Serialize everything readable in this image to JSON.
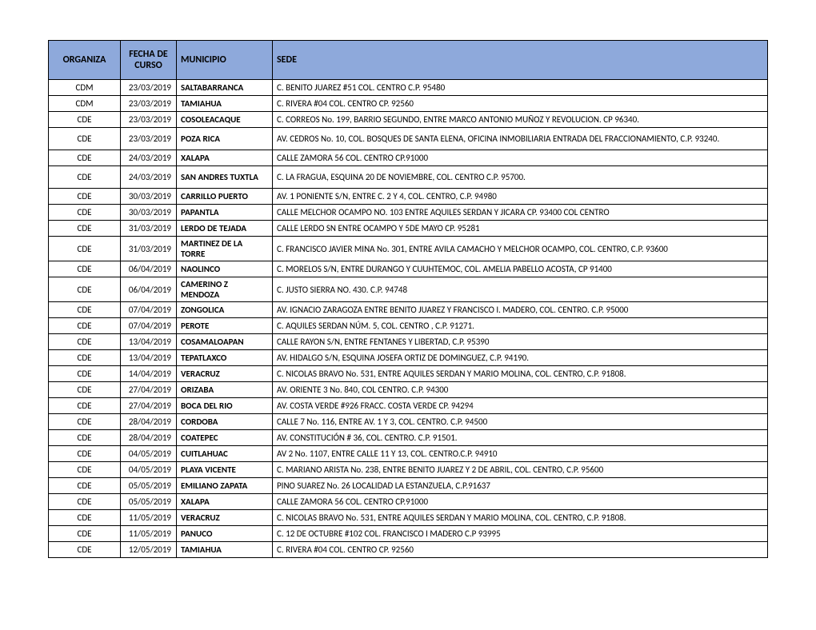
{
  "table": {
    "header_bg": "#8ea9db",
    "border_color": "#000000",
    "columns": [
      "ORGANIZA",
      "FECHA DE CURSO",
      "MUNICIPIO",
      "SEDE"
    ],
    "rows": [
      {
        "organiza": "CDM",
        "fecha": "23/03/2019",
        "municipio": "SALTABARRANCA",
        "sede": "C. BENITO JUAREZ #51 COL. CENTRO C.P. 95480"
      },
      {
        "organiza": "CDM",
        "fecha": "23/03/2019",
        "municipio": "TAMIAHUA",
        "sede": "C. RIVERA #04 COL. CENTRO CP. 92560"
      },
      {
        "organiza": "CDE",
        "fecha": "23/03/2019",
        "municipio": "COSOLEACAQUE",
        "sede": "C. CORREOS No. 199, BARRIO SEGUNDO, ENTRE MARCO ANTONIO MUÑOZ Y REVOLUCION.  CP 96340."
      },
      {
        "organiza": "CDE",
        "fecha": "23/03/2019",
        "municipio": "POZA RICA",
        "sede": "AV. CEDROS No. 10, COL. BOSQUES DE SANTA ELENA, OFICINA INMOBILIARIA ENTRADA DEL FRACCIONAMIENTO, C.P. 93240.",
        "tall": true
      },
      {
        "organiza": "CDE",
        "fecha": "24/03/2019",
        "municipio": "XALAPA",
        "sede": "CALLE ZAMORA 56 COL. CENTRO CP.91000"
      },
      {
        "organiza": "CDE",
        "fecha": "24/03/2019",
        "municipio": "SAN ANDRES TUXTLA",
        "sede": "C. LA FRAGUA,  ESQUINA 20 DE NOVIEMBRE, COL.  CENTRO C.P. 95700.",
        "tall": true
      },
      {
        "organiza": "CDE",
        "fecha": "30/03/2019",
        "municipio": "CARRILLO PUERTO",
        "sede": "AV. 1 PONIENTE S/N, ENTRE C. 2 Y 4, COL. CENTRO, C.P. 94980"
      },
      {
        "organiza": "CDE",
        "fecha": "30/03/2019",
        "municipio": "PAPANTLA",
        "sede": "CALLE MELCHOR OCAMPO NO. 103 ENTRE AQUILES SERDAN Y JICARA CP. 93400 COL CENTRO"
      },
      {
        "organiza": "CDE",
        "fecha": "31/03/2019",
        "municipio": "LERDO DE TEJADA",
        "sede": "CALLE LERDO SN ENTRE OCAMPO Y 5DE MAYO CP. 95281"
      },
      {
        "organiza": "CDE",
        "fecha": "31/03/2019",
        "municipio": "MARTINEZ DE LA TORRE",
        "sede": "C. FRANCISCO JAVIER MINA No. 301, ENTRE AVILA CAMACHO Y MELCHOR OCAMPO, COL. CENTRO, C.P. 93600",
        "tall": true
      },
      {
        "organiza": "CDE",
        "fecha": "06/04/2019",
        "municipio": "NAOLINCO",
        "sede": "C. MORELOS S/N, ENTRE  DURANGO Y CUUHTEMOC, COL. AMELIA PABELLO ACOSTA, CP 91400"
      },
      {
        "organiza": "CDE",
        "fecha": "06/04/2019",
        "municipio": "CAMERINO Z MENDOZA",
        "sede": "C. JUSTO SIERRA NO. 430. C.P. 94748",
        "tall": true
      },
      {
        "organiza": "CDE",
        "fecha": "07/04/2019",
        "municipio": "ZONGOLICA",
        "sede": "AV. IGNACIO ZARAGOZA  ENTRE BENITO JUAREZ Y FRANCISCO I. MADERO, COL. CENTRO. C.P. 95000"
      },
      {
        "organiza": "CDE",
        "fecha": "07/04/2019",
        "municipio": "PEROTE",
        "sede": "C. AQUILES SERDAN NÚM. 5, COL. CENTRO , C.P. 91271."
      },
      {
        "organiza": "CDE",
        "fecha": "13/04/2019",
        "municipio": "COSAMALOAPAN",
        "sede": "CALLE RAYON S/N, ENTRE FENTANES Y LIBERTAD, C.P. 95390"
      },
      {
        "organiza": "CDE",
        "fecha": "13/04/2019",
        "municipio": "TEPATLAXCO",
        "sede": "AV. HIDALGO S/N, ESQUINA JOSEFA ORTIZ DE DOMINGUEZ, C.P. 94190."
      },
      {
        "organiza": "CDE",
        "fecha": "14/04/2019",
        "municipio": "VERACRUZ",
        "sede": "C. NICOLAS BRAVO No. 531, ENTRE AQUILES SERDAN Y MARIO MOLINA, COL. CENTRO, C.P. 91808."
      },
      {
        "organiza": "CDE",
        "fecha": "27/04/2019",
        "municipio": "ORIZABA",
        "sede": "AV. ORIENTE 3 No. 840, COL CENTRO. C.P. 94300"
      },
      {
        "organiza": "CDE",
        "fecha": "27/04/2019",
        "municipio": "BOCA DEL RIO",
        "sede": "AV. COSTA VERDE #926 FRACC. COSTA VERDE CP. 94294"
      },
      {
        "organiza": "CDE",
        "fecha": "28/04/2019",
        "municipio": "CORDOBA",
        "sede": "CALLE 7 No. 116, ENTRE AV. 1 Y 3, COL. CENTRO. C.P. 94500"
      },
      {
        "organiza": "CDE",
        "fecha": "28/04/2019",
        "municipio": "COATEPEC",
        "sede": "AV. CONSTITUCIÓN # 36, COL. CENTRO. C.P. 91501."
      },
      {
        "organiza": "CDE",
        "fecha": "04/05/2019",
        "municipio": "CUITLAHUAC",
        "sede": "AV 2 No. 1107, ENTRE CALLE 11 Y 13, COL. CENTRO.C.P. 94910"
      },
      {
        "organiza": "CDE",
        "fecha": "04/05/2019",
        "municipio": "PLAYA VICENTE",
        "sede": "C. MARIANO ARISTA No. 238, ENTRE BENITO JUAREZ Y 2 DE ABRIL, COL. CENTRO, C.P. 95600"
      },
      {
        "organiza": "CDE",
        "fecha": "05/05/2019",
        "municipio": "EMILIANO ZAPATA",
        "sede": "PINO SUAREZ No. 26 LOCALIDAD LA ESTANZUELA, C.P.91637"
      },
      {
        "organiza": "CDE",
        "fecha": "05/05/2019",
        "municipio": "XALAPA",
        "sede": "CALLE ZAMORA 56 COL. CENTRO CP.91000"
      },
      {
        "organiza": "CDE",
        "fecha": "11/05/2019",
        "municipio": "VERACRUZ",
        "sede": "C. NICOLAS BRAVO No. 531, ENTRE AQUILES SERDAN Y MARIO MOLINA, COL. CENTRO, C.P. 91808."
      },
      {
        "organiza": "CDE",
        "fecha": "11/05/2019",
        "municipio": "PANUCO",
        "sede": "C. 12 DE OCTUBRE #102 COL. FRANCISCO I MADERO C.P 93995"
      },
      {
        "organiza": "CDE",
        "fecha": "12/05/2019",
        "municipio": "TAMIAHUA",
        "sede": "C. RIVERA #04 COL. CENTRO CP. 92560"
      }
    ]
  }
}
